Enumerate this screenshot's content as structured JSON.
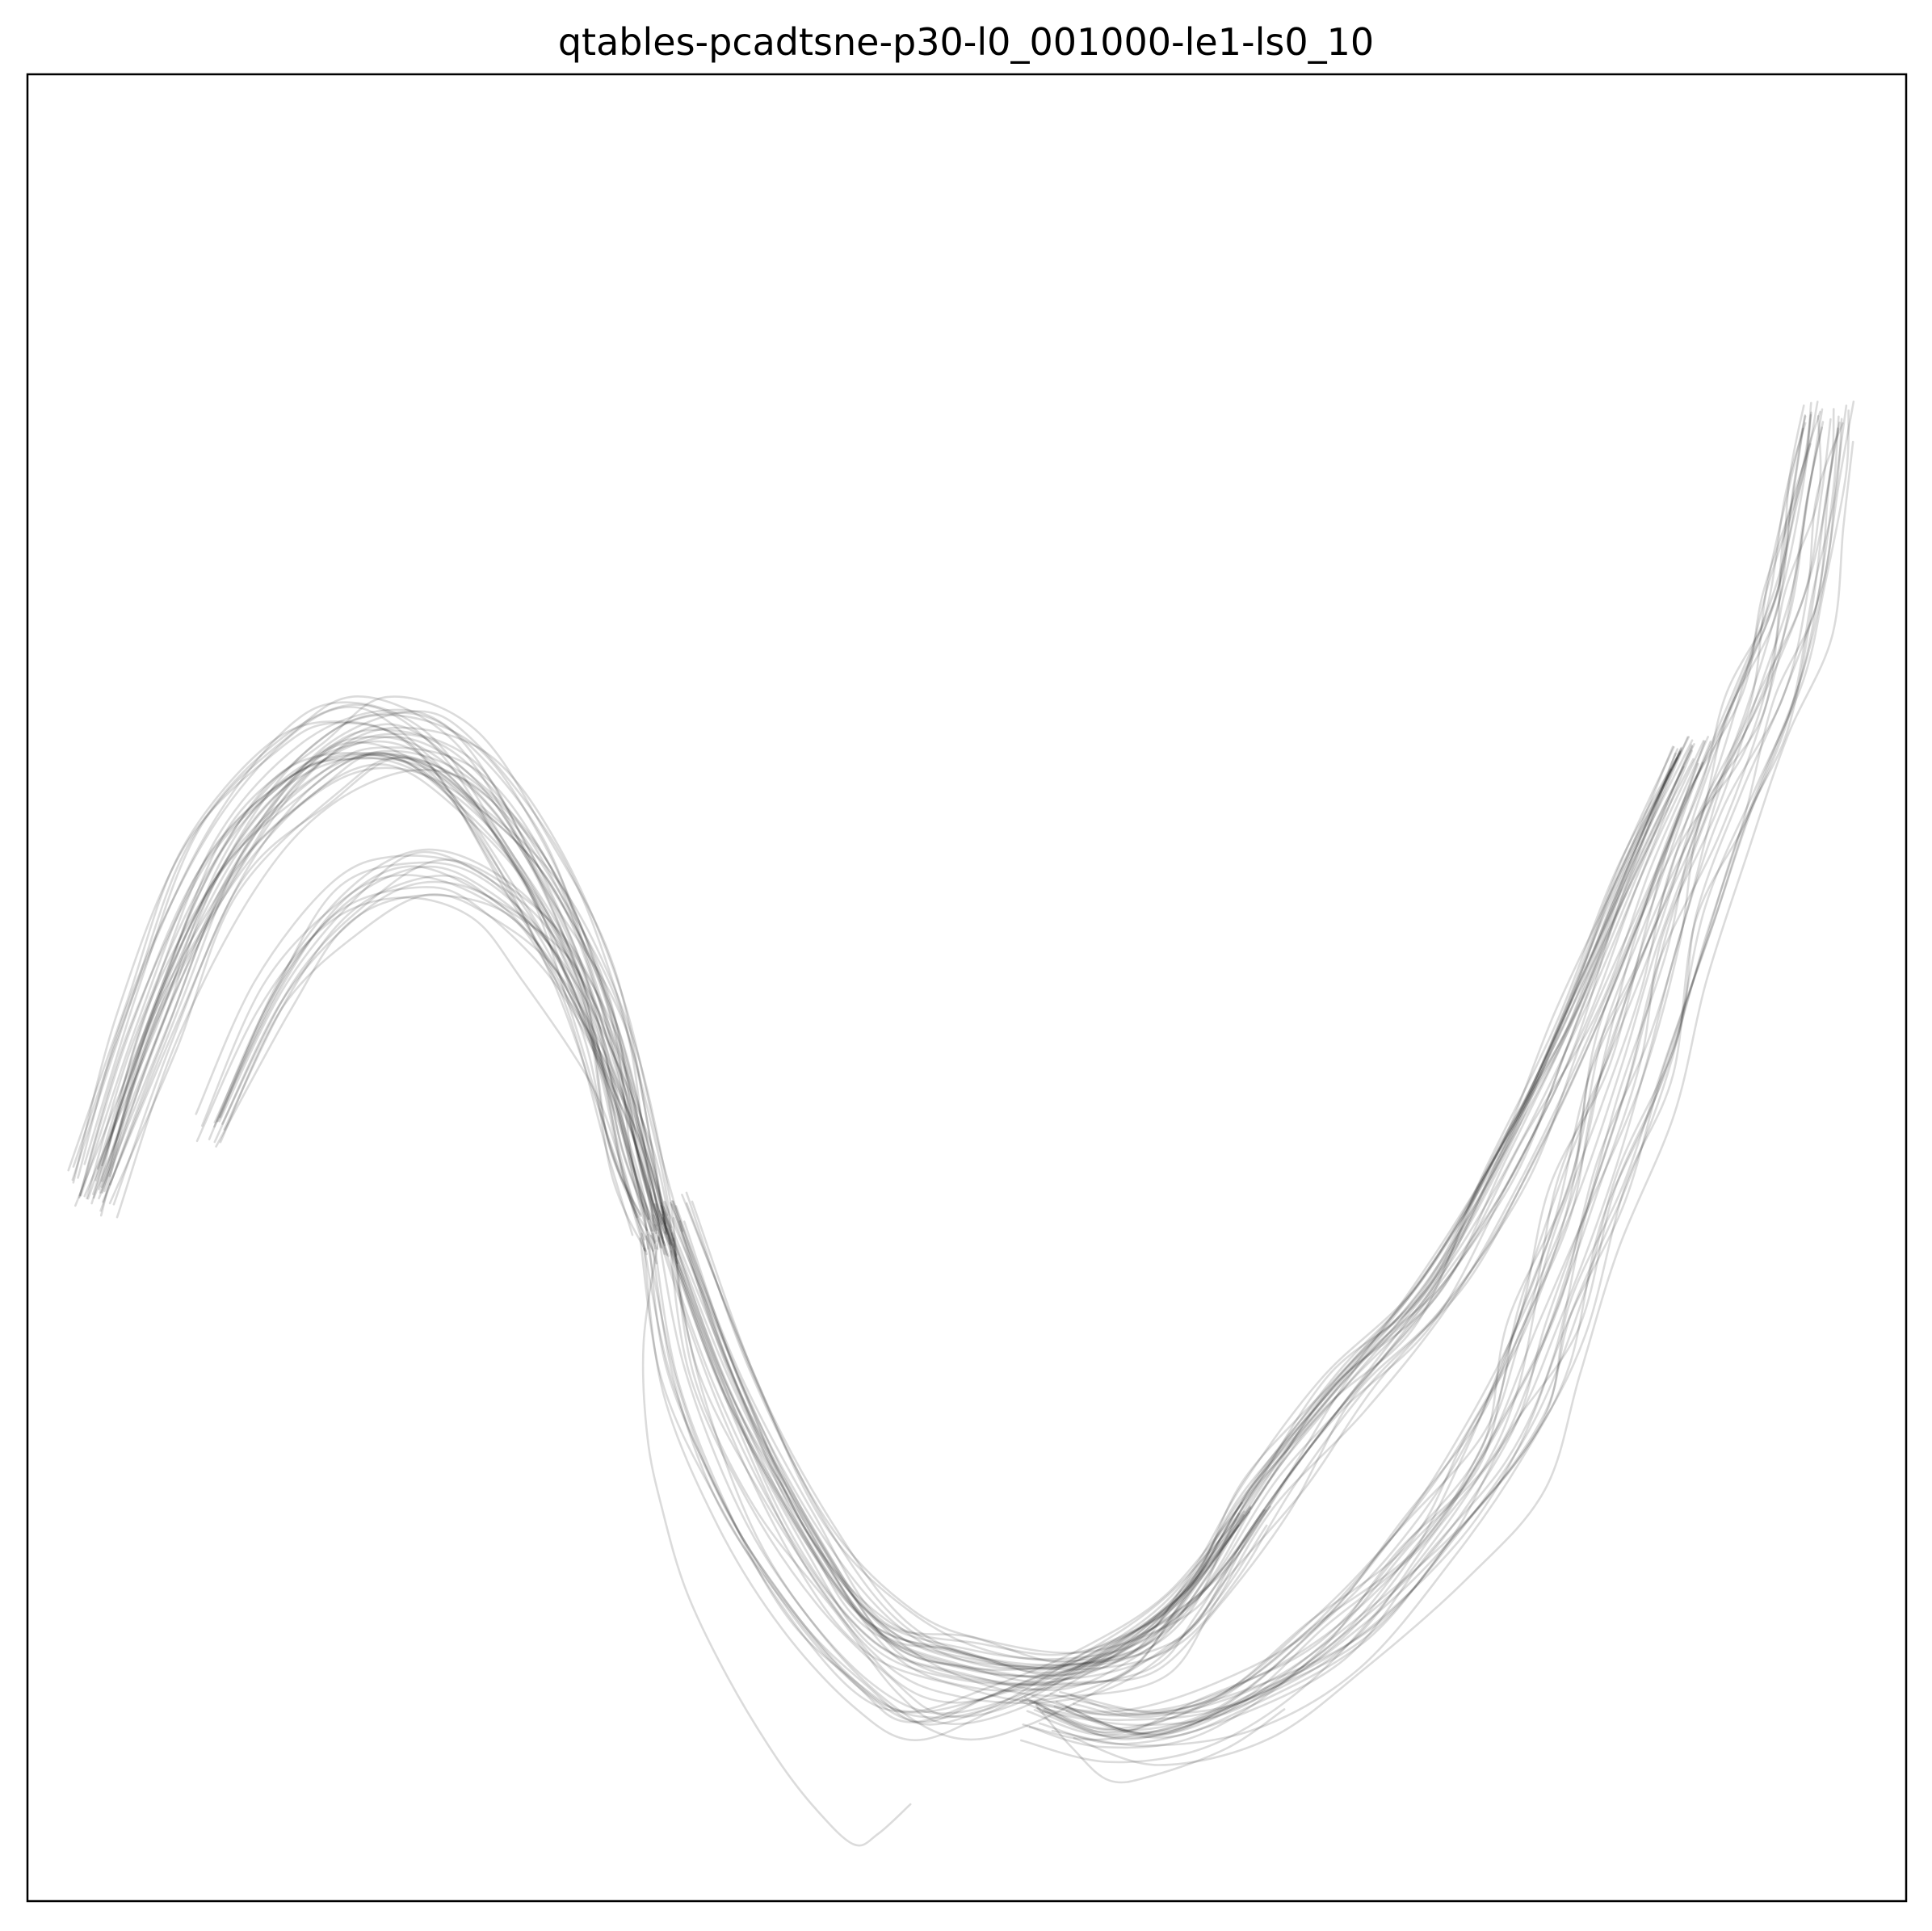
{
  "chart_data": {
    "type": "line",
    "title": "qtables-pcadtsne-p30-l0_001000-le1-ls0_10",
    "xlabel": "",
    "ylabel": "",
    "xticks": [],
    "yticks": [],
    "grid": false,
    "legend": "none",
    "xlim": [
      0,
      100
    ],
    "ylim": [
      0,
      100
    ],
    "line_color": "#000000",
    "line_opacity": 0.14,
    "groups": [
      {
        "name": "",
        "count": 34,
        "jitter": 2.0,
        "path": [
          [
            3.4,
            38.9
          ],
          [
            6.5,
            48.2
          ],
          [
            10.2,
            56.8
          ],
          [
            14.6,
            62.0
          ],
          [
            18.5,
            63.7
          ],
          [
            22.6,
            62.1
          ],
          [
            26.6,
            56.9
          ],
          [
            30.1,
            49.2
          ],
          [
            32.3,
            40.3
          ],
          [
            33.6,
            36.3
          ]
        ]
      },
      {
        "name": "",
        "count": 14,
        "jitter": 1.5,
        "path": [
          [
            9.9,
            42.2
          ],
          [
            13.4,
            49.8
          ],
          [
            17.0,
            54.6
          ],
          [
            20.9,
            56.3
          ],
          [
            24.6,
            55.1
          ],
          [
            27.8,
            51.7
          ],
          [
            30.9,
            46.0
          ],
          [
            32.6,
            40.9
          ],
          [
            33.6,
            36.3
          ]
        ]
      },
      {
        "name": "",
        "count": 12,
        "jitter": 1.3,
        "path": [
          [
            33.6,
            36.3
          ],
          [
            35.0,
            28.6
          ],
          [
            37.9,
            21.3
          ],
          [
            41.6,
            15.7
          ],
          [
            45.2,
            11.7
          ],
          [
            48.2,
            10.0
          ],
          [
            52.2,
            10.8
          ],
          [
            57.1,
            13.2
          ],
          [
            61.6,
            16.3
          ],
          [
            65.4,
            21.3
          ]
        ]
      },
      {
        "name": "",
        "count": 26,
        "jitter": 1.6,
        "path": [
          [
            34.3,
            37.6
          ],
          [
            37.8,
            28.1
          ],
          [
            42.0,
            19.8
          ],
          [
            45.9,
            14.4
          ],
          [
            50.6,
            12.7
          ],
          [
            55.6,
            12.1
          ],
          [
            59.8,
            13.5
          ],
          [
            62.7,
            16.8
          ],
          [
            66.1,
            22.0
          ],
          [
            70.4,
            27.9
          ],
          [
            75.0,
            33.1
          ],
          [
            79.0,
            40.2
          ],
          [
            82.6,
            48.0
          ],
          [
            85.6,
            55.9
          ],
          [
            88.6,
            62.9
          ]
        ]
      },
      {
        "name": "",
        "count": 26,
        "jitter": 2.2,
        "path": [
          [
            54.3,
            10.1
          ],
          [
            58.9,
            8.7
          ],
          [
            64.2,
            10.0
          ],
          [
            69.9,
            13.8
          ],
          [
            74.7,
            19.0
          ],
          [
            78.6,
            24.5
          ],
          [
            81.1,
            30.6
          ],
          [
            83.4,
            37.8
          ],
          [
            85.7,
            44.9
          ],
          [
            87.8,
            52.1
          ],
          [
            90.1,
            58.9
          ],
          [
            92.6,
            64.8
          ],
          [
            94.2,
            70.7
          ],
          [
            95.3,
            76.7
          ],
          [
            95.9,
            80.7
          ]
        ]
      },
      {
        "name": "",
        "count": 1,
        "jitter": 0,
        "path": [
          [
            33.6,
            36.3
          ],
          [
            32.8,
            30.6
          ],
          [
            33.0,
            25.4
          ],
          [
            33.8,
            21.4
          ],
          [
            35.1,
            16.9
          ],
          [
            37.3,
            12.2
          ],
          [
            39.9,
            7.8
          ],
          [
            42.0,
            5.0
          ],
          [
            44.0,
            3.1
          ],
          [
            45.3,
            3.7
          ],
          [
            47.0,
            5.3
          ]
        ]
      },
      {
        "name": "",
        "count": 1,
        "jitter": 0,
        "path": [
          [
            53.7,
            10.7
          ],
          [
            55.6,
            8.4
          ],
          [
            57.6,
            6.6
          ],
          [
            60.0,
            6.9
          ],
          [
            63.9,
            8.4
          ],
          [
            66.9,
            10.5
          ]
        ]
      }
    ]
  }
}
